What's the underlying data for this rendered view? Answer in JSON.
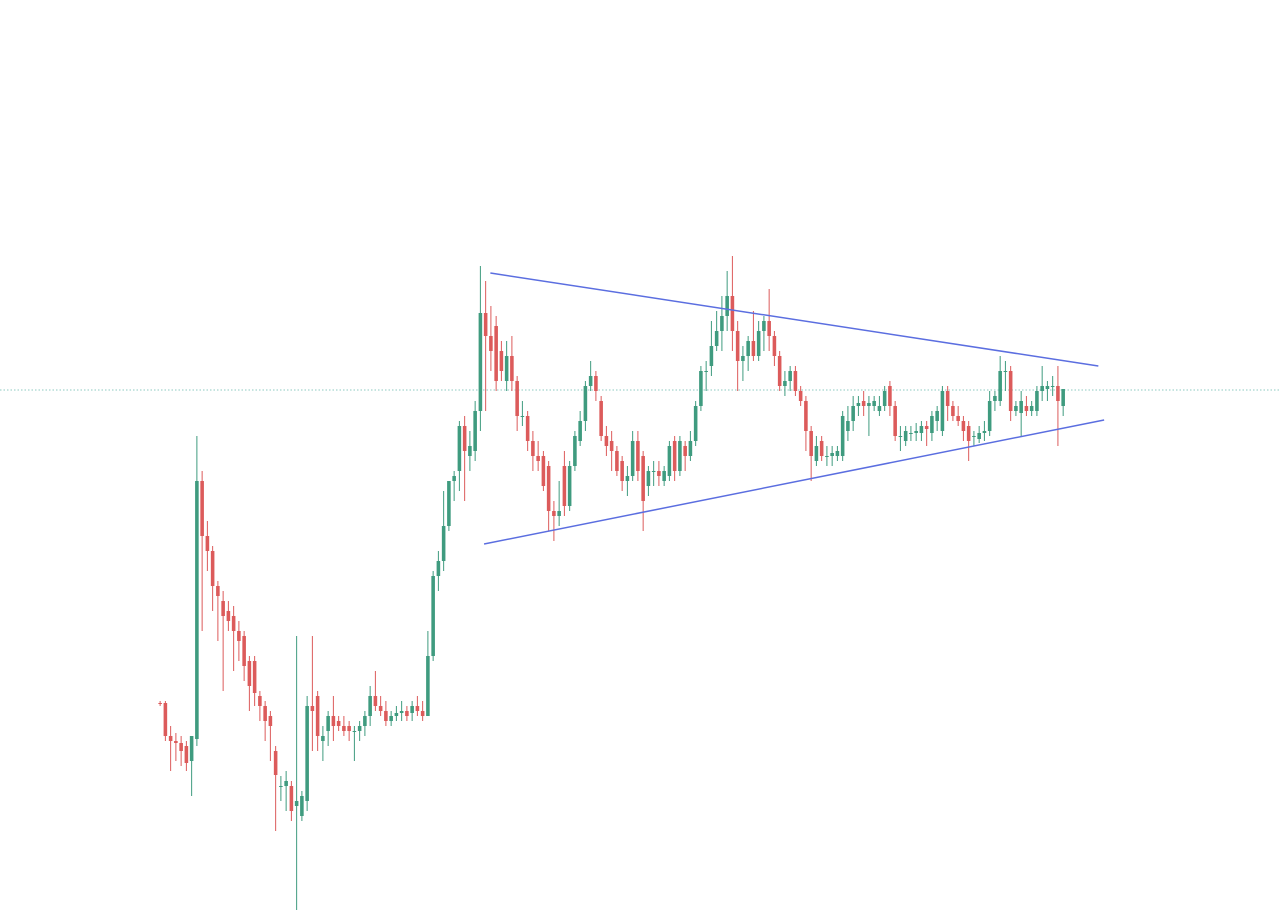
{
  "chart_data": {
    "type": "candlestick",
    "up_color": "#3f9b7f",
    "down_color": "#dc5b5b",
    "xlim": [
      -30.5,
      213.3
    ],
    "ylim": [
      0,
      911
    ],
    "price_line": {
      "value": 521,
      "color": "#8cc9c0"
    },
    "trendlines": [
      {
        "x": [
          62.9,
          178.7
        ],
        "y": [
          638,
          545
        ],
        "color": "#5b6ee0"
      },
      {
        "x": [
          61.7,
          179.8
        ],
        "y": [
          367,
          491
        ],
        "color": "#5b6ee0"
      }
    ],
    "ohlc": [
      [
        208,
        210,
        205,
        207
      ],
      [
        208,
        210,
        170,
        175
      ],
      [
        175,
        185,
        140,
        170
      ],
      [
        170,
        178,
        150,
        168
      ],
      [
        168,
        175,
        145,
        160
      ],
      [
        165,
        170,
        140,
        148
      ],
      [
        150,
        175,
        115,
        175
      ],
      [
        172,
        475,
        165,
        430
      ],
      [
        430,
        440,
        280,
        375
      ],
      [
        375,
        390,
        340,
        360
      ],
      [
        360,
        365,
        300,
        325
      ],
      [
        325,
        330,
        270,
        315
      ],
      [
        310,
        320,
        220,
        295
      ],
      [
        300,
        310,
        280,
        290
      ],
      [
        295,
        305,
        240,
        280
      ],
      [
        280,
        290,
        250,
        270
      ],
      [
        275,
        280,
        230,
        245
      ],
      [
        250,
        255,
        200,
        225
      ],
      [
        250,
        255,
        205,
        218
      ],
      [
        215,
        220,
        190,
        205
      ],
      [
        205,
        210,
        170,
        190
      ],
      [
        195,
        200,
        150,
        185
      ],
      [
        160,
        165,
        80,
        136
      ],
      [
        125,
        135,
        110,
        125
      ],
      [
        125,
        140,
        100,
        130
      ],
      [
        125,
        130,
        90,
        100
      ],
      [
        105,
        275,
        1,
        110
      ],
      [
        95,
        120,
        90,
        115
      ],
      [
        110,
        215,
        100,
        205
      ],
      [
        205,
        275,
        160,
        200
      ],
      [
        215,
        220,
        160,
        175
      ],
      [
        170,
        185,
        150,
        175
      ],
      [
        180,
        200,
        165,
        195
      ],
      [
        195,
        215,
        170,
        185
      ],
      [
        190,
        195,
        180,
        185
      ],
      [
        185,
        195,
        175,
        180
      ],
      [
        185,
        190,
        170,
        180
      ],
      [
        180,
        185,
        150,
        180
      ],
      [
        180,
        190,
        170,
        185
      ],
      [
        185,
        200,
        175,
        195
      ],
      [
        195,
        225,
        185,
        215
      ],
      [
        215,
        240,
        200,
        205
      ],
      [
        205,
        215,
        195,
        200
      ],
      [
        200,
        210,
        185,
        190
      ],
      [
        190,
        200,
        185,
        195
      ],
      [
        195,
        205,
        190,
        198
      ],
      [
        198,
        210,
        190,
        200
      ],
      [
        200,
        205,
        190,
        195
      ],
      [
        198,
        210,
        190,
        205
      ],
      [
        205,
        215,
        195,
        200
      ],
      [
        200,
        210,
        190,
        195
      ],
      [
        195,
        280,
        195,
        255
      ],
      [
        255,
        340,
        250,
        335
      ],
      [
        335,
        360,
        320,
        350
      ],
      [
        350,
        420,
        340,
        385
      ],
      [
        385,
        430,
        380,
        430
      ],
      [
        430,
        440,
        410,
        435
      ],
      [
        440,
        490,
        420,
        485
      ],
      [
        485,
        495,
        410,
        460
      ],
      [
        455,
        480,
        440,
        465
      ],
      [
        460,
        510,
        450,
        500
      ],
      [
        500,
        645,
        480,
        598
      ],
      [
        598,
        630,
        500,
        575
      ],
      [
        575,
        605,
        540,
        560
      ],
      [
        585,
        595,
        520,
        530
      ],
      [
        560,
        570,
        530,
        540
      ],
      [
        530,
        570,
        520,
        555
      ],
      [
        555,
        575,
        520,
        530
      ],
      [
        530,
        535,
        480,
        495
      ],
      [
        495,
        510,
        485,
        495
      ],
      [
        495,
        500,
        460,
        470
      ],
      [
        470,
        480,
        440,
        455
      ],
      [
        455,
        470,
        440,
        450
      ],
      [
        455,
        460,
        420,
        425
      ],
      [
        445,
        450,
        380,
        400
      ],
      [
        400,
        410,
        370,
        395
      ],
      [
        395,
        430,
        385,
        400
      ],
      [
        445,
        460,
        395,
        405
      ],
      [
        405,
        450,
        400,
        445
      ],
      [
        445,
        480,
        440,
        475
      ],
      [
        470,
        500,
        465,
        490
      ],
      [
        490,
        530,
        480,
        525
      ],
      [
        525,
        550,
        520,
        535
      ],
      [
        535,
        540,
        510,
        520
      ],
      [
        510,
        515,
        470,
        475
      ],
      [
        475,
        485,
        455,
        465
      ],
      [
        470,
        480,
        440,
        460
      ],
      [
        460,
        465,
        435,
        440
      ],
      [
        450,
        455,
        420,
        430
      ],
      [
        430,
        445,
        415,
        435
      ],
      [
        435,
        480,
        430,
        470
      ],
      [
        470,
        480,
        430,
        440
      ],
      [
        455,
        460,
        380,
        410
      ],
      [
        425,
        445,
        415,
        440
      ],
      [
        440,
        450,
        425,
        440
      ],
      [
        440,
        450,
        425,
        435
      ],
      [
        430,
        445,
        425,
        440
      ],
      [
        435,
        470,
        430,
        465
      ],
      [
        470,
        475,
        430,
        440
      ],
      [
        440,
        475,
        435,
        470
      ],
      [
        465,
        470,
        440,
        455
      ],
      [
        455,
        480,
        450,
        470
      ],
      [
        470,
        510,
        465,
        505
      ],
      [
        505,
        545,
        500,
        540
      ],
      [
        540,
        550,
        520,
        540
      ],
      [
        545,
        590,
        535,
        565
      ],
      [
        565,
        600,
        560,
        580
      ],
      [
        580,
        615,
        560,
        595
      ],
      [
        595,
        640,
        580,
        615
      ],
      [
        615,
        655,
        560,
        580
      ],
      [
        580,
        590,
        520,
        550
      ],
      [
        550,
        565,
        530,
        555
      ],
      [
        555,
        575,
        540,
        570
      ],
      [
        570,
        600,
        550,
        555
      ],
      [
        555,
        590,
        550,
        580
      ],
      [
        580,
        595,
        560,
        590
      ],
      [
        590,
        622,
        560,
        575
      ],
      [
        575,
        580,
        545,
        555
      ],
      [
        555,
        560,
        520,
        525
      ],
      [
        525,
        540,
        515,
        530
      ],
      [
        530,
        545,
        520,
        540
      ],
      [
        540,
        545,
        515,
        520
      ],
      [
        520,
        525,
        505,
        510
      ],
      [
        510,
        515,
        460,
        480
      ],
      [
        480,
        485,
        430,
        455
      ],
      [
        450,
        475,
        445,
        465
      ],
      [
        470,
        475,
        450,
        455
      ],
      [
        455,
        465,
        445,
        455
      ],
      [
        455,
        465,
        445,
        458
      ],
      [
        455,
        465,
        450,
        460
      ],
      [
        455,
        500,
        450,
        495
      ],
      [
        480,
        505,
        470,
        490
      ],
      [
        490,
        515,
        480,
        505
      ],
      [
        505,
        515,
        495,
        508
      ],
      [
        510,
        520,
        495,
        505
      ],
      [
        505,
        515,
        475,
        508
      ],
      [
        505,
        515,
        500,
        510
      ],
      [
        500,
        515,
        495,
        505
      ],
      [
        505,
        525,
        500,
        520
      ],
      [
        525,
        530,
        495,
        505
      ],
      [
        505,
        510,
        470,
        475
      ],
      [
        475,
        485,
        460,
        475
      ],
      [
        470,
        485,
        465,
        480
      ],
      [
        478,
        485,
        470,
        478
      ],
      [
        478,
        488,
        470,
        480
      ],
      [
        478,
        490,
        470,
        485
      ],
      [
        485,
        490,
        465,
        482
      ],
      [
        478,
        500,
        470,
        495
      ],
      [
        490,
        505,
        480,
        500
      ],
      [
        480,
        525,
        475,
        520
      ],
      [
        520,
        525,
        490,
        505
      ],
      [
        505,
        510,
        490,
        495
      ],
      [
        495,
        505,
        485,
        490
      ],
      [
        490,
        495,
        470,
        480
      ],
      [
        485,
        490,
        450,
        470
      ],
      [
        475,
        480,
        465,
        475
      ],
      [
        472,
        485,
        468,
        478
      ],
      [
        478,
        490,
        470,
        480
      ],
      [
        480,
        520,
        475,
        510
      ],
      [
        510,
        520,
        500,
        515
      ],
      [
        510,
        555,
        505,
        540
      ],
      [
        540,
        550,
        520,
        540
      ],
      [
        540,
        545,
        490,
        500
      ],
      [
        500,
        510,
        495,
        505
      ],
      [
        498,
        520,
        475,
        510
      ],
      [
        505,
        515,
        495,
        500
      ],
      [
        500,
        510,
        495,
        505
      ],
      [
        500,
        525,
        495,
        520
      ],
      [
        520,
        545,
        510,
        525
      ],
      [
        522,
        530,
        510,
        525
      ],
      [
        525,
        535,
        515,
        525
      ],
      [
        525,
        545,
        465,
        510
      ],
      [
        505,
        520,
        495,
        522
      ]
    ]
  }
}
